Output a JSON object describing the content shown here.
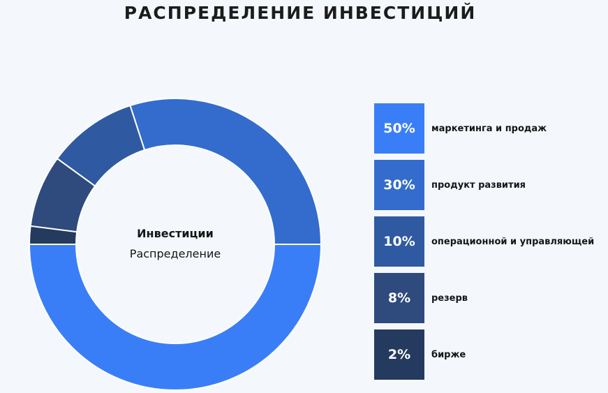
{
  "page": {
    "title": "РАСПРЕДЕЛЕНИЕ ИНВЕСТИЦИЙ"
  },
  "chart_data": {
    "type": "pie",
    "variant": "donut",
    "title": "РАСПРЕДЕЛЕНИЕ ИНВЕСТИЦИЙ",
    "center_title": "Инвестиции",
    "center_subtitle": "Распределение",
    "slices": [
      {
        "label": "маркетинга и продаж",
        "value": 50,
        "display": "50%",
        "color": "#3a7ef7"
      },
      {
        "label": "продукт развития",
        "value": 30,
        "display": "30%",
        "color": "#336ccd"
      },
      {
        "label": "операционной и управляющей",
        "value": 10,
        "display": "10%",
        "color": "#2f5aa1"
      },
      {
        "label": "резерв",
        "value": 8,
        "display": "8%",
        "color": "#2f4a7c"
      },
      {
        "label": "бирже",
        "value": 2,
        "display": "2%",
        "color": "#253a5f"
      }
    ],
    "start_angle_deg": 180,
    "direction": "counterclockwise-from-left",
    "legend_position": "right"
  }
}
